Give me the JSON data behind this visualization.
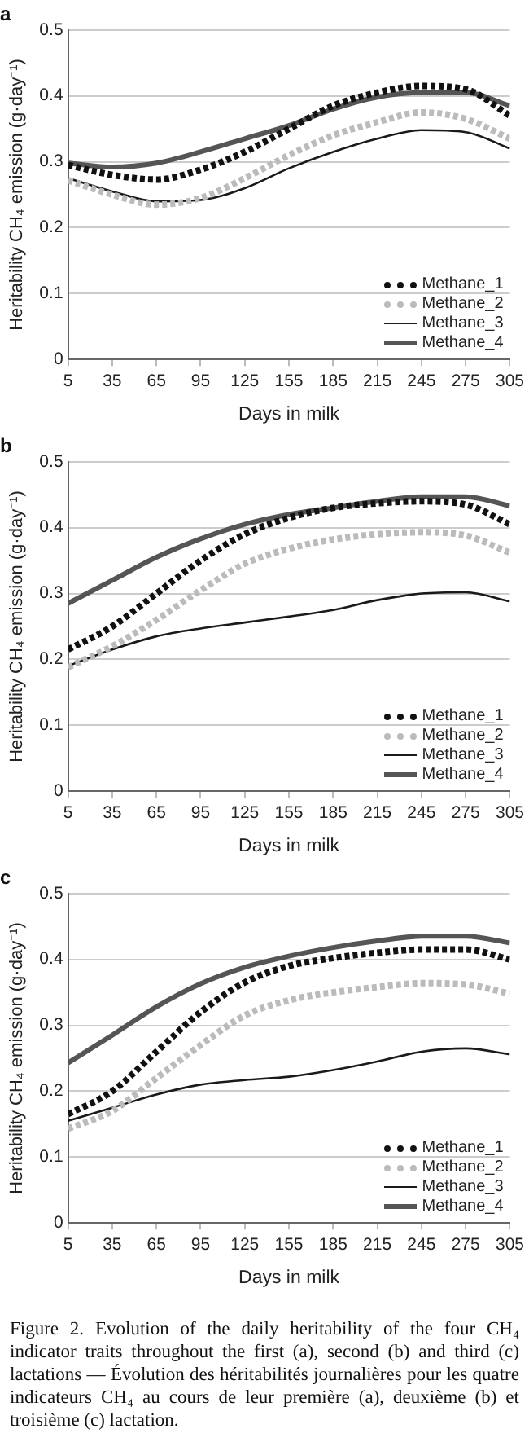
{
  "chart_data": [
    {
      "type": "line",
      "title": "a",
      "xlabel": "Days in milk",
      "ylabel": "Heritability CH₄ emission (g·day⁻¹)",
      "x": [
        5,
        35,
        65,
        95,
        125,
        155,
        185,
        215,
        245,
        275,
        305
      ],
      "xlim": [
        5,
        305
      ],
      "xticks": [
        5,
        35,
        65,
        95,
        125,
        155,
        185,
        215,
        245,
        275,
        305
      ],
      "ylim": [
        0,
        0.5
      ],
      "yticks": [
        0,
        0.1,
        0.2,
        0.3,
        0.4,
        0.5
      ],
      "grid": "y",
      "legend": "bottom right",
      "marker": "none",
      "series": [
        {
          "name": "Methane_1",
          "color": "#111111",
          "line_style": "dotted",
          "values": [
            0.295,
            0.28,
            0.273,
            0.288,
            0.315,
            0.35,
            0.385,
            0.405,
            0.415,
            0.41,
            0.37
          ]
        },
        {
          "name": "Methane_2",
          "color": "#bbbbbb",
          "line_style": "dotted",
          "values": [
            0.272,
            0.25,
            0.235,
            0.245,
            0.275,
            0.31,
            0.34,
            0.36,
            0.375,
            0.365,
            0.335
          ]
        },
        {
          "name": "Methane_3",
          "color": "#1a1a1a",
          "line_style": "solid",
          "values": [
            0.275,
            0.255,
            0.24,
            0.242,
            0.26,
            0.29,
            0.315,
            0.335,
            0.348,
            0.345,
            0.32
          ]
        },
        {
          "name": "Methane_4",
          "color": "#555555",
          "line_style": "solid",
          "values": [
            0.298,
            0.292,
            0.298,
            0.315,
            0.335,
            0.355,
            0.38,
            0.398,
            0.405,
            0.405,
            0.385
          ]
        }
      ]
    },
    {
      "type": "line",
      "title": "b",
      "xlabel": "Days in milk",
      "ylabel": "Heritability CH₄ emission (g·day⁻¹)",
      "x": [
        5,
        35,
        65,
        95,
        125,
        155,
        185,
        215,
        245,
        275,
        305
      ],
      "xlim": [
        5,
        305
      ],
      "xticks": [
        5,
        35,
        65,
        95,
        125,
        155,
        185,
        215,
        245,
        275,
        305
      ],
      "ylim": [
        0,
        0.5
      ],
      "yticks": [
        0,
        0.1,
        0.2,
        0.3,
        0.4,
        0.5
      ],
      "grid": "y",
      "legend": "bottom right",
      "marker": "none",
      "series": [
        {
          "name": "Methane_1",
          "color": "#111111",
          "line_style": "dotted",
          "values": [
            0.215,
            0.25,
            0.3,
            0.35,
            0.39,
            0.415,
            0.43,
            0.437,
            0.44,
            0.435,
            0.405
          ]
        },
        {
          "name": "Methane_2",
          "color": "#bbbbbb",
          "line_style": "dotted",
          "values": [
            0.188,
            0.22,
            0.26,
            0.305,
            0.345,
            0.368,
            0.382,
            0.39,
            0.393,
            0.388,
            0.362
          ]
        },
        {
          "name": "Methane_3",
          "color": "#1a1a1a",
          "line_style": "solid",
          "values": [
            0.19,
            0.215,
            0.235,
            0.247,
            0.256,
            0.265,
            0.275,
            0.29,
            0.3,
            0.302,
            0.288
          ]
        },
        {
          "name": "Methane_4",
          "color": "#555555",
          "line_style": "solid",
          "values": [
            0.285,
            0.32,
            0.355,
            0.383,
            0.405,
            0.42,
            0.43,
            0.44,
            0.447,
            0.447,
            0.433
          ]
        }
      ]
    },
    {
      "type": "line",
      "title": "c",
      "xlabel": "Days in milk",
      "ylabel": "Heritability CH₄ emission (g·day⁻¹)",
      "x": [
        5,
        35,
        65,
        95,
        125,
        155,
        185,
        215,
        245,
        275,
        305
      ],
      "xlim": [
        5,
        305
      ],
      "xticks": [
        5,
        35,
        65,
        95,
        125,
        155,
        185,
        215,
        245,
        275,
        305
      ],
      "ylim": [
        0,
        0.5
      ],
      "yticks": [
        0,
        0.1,
        0.2,
        0.3,
        0.4,
        0.5
      ],
      "grid": "y",
      "legend": "bottom right",
      "marker": "none",
      "annotations": [
        "Figure 2. Evolution of the daily heritability of the four CH₄ indicator traits throughout the first (a), second (b) and third (c) lactations — Évolution des héritabilités journalières pour les quatre indicateurs CH₄ au cours de leur première (a), deuxième (b) et troisième (c) lactation."
      ],
      "series": [
        {
          "name": "Methane_1",
          "color": "#111111",
          "line_style": "dotted",
          "values": [
            0.165,
            0.2,
            0.26,
            0.32,
            0.365,
            0.39,
            0.402,
            0.41,
            0.415,
            0.415,
            0.4
          ]
        },
        {
          "name": "Methane_2",
          "color": "#bbbbbb",
          "line_style": "dotted",
          "values": [
            0.143,
            0.17,
            0.22,
            0.27,
            0.315,
            0.338,
            0.35,
            0.358,
            0.364,
            0.362,
            0.348
          ]
        },
        {
          "name": "Methane_3",
          "color": "#1a1a1a",
          "line_style": "solid",
          "values": [
            0.155,
            0.175,
            0.195,
            0.21,
            0.217,
            0.222,
            0.232,
            0.245,
            0.26,
            0.265,
            0.256
          ]
        },
        {
          "name": "Methane_4",
          "color": "#555555",
          "line_style": "solid",
          "values": [
            0.243,
            0.285,
            0.328,
            0.363,
            0.388,
            0.405,
            0.418,
            0.428,
            0.435,
            0.435,
            0.425
          ]
        }
      ]
    }
  ]
}
